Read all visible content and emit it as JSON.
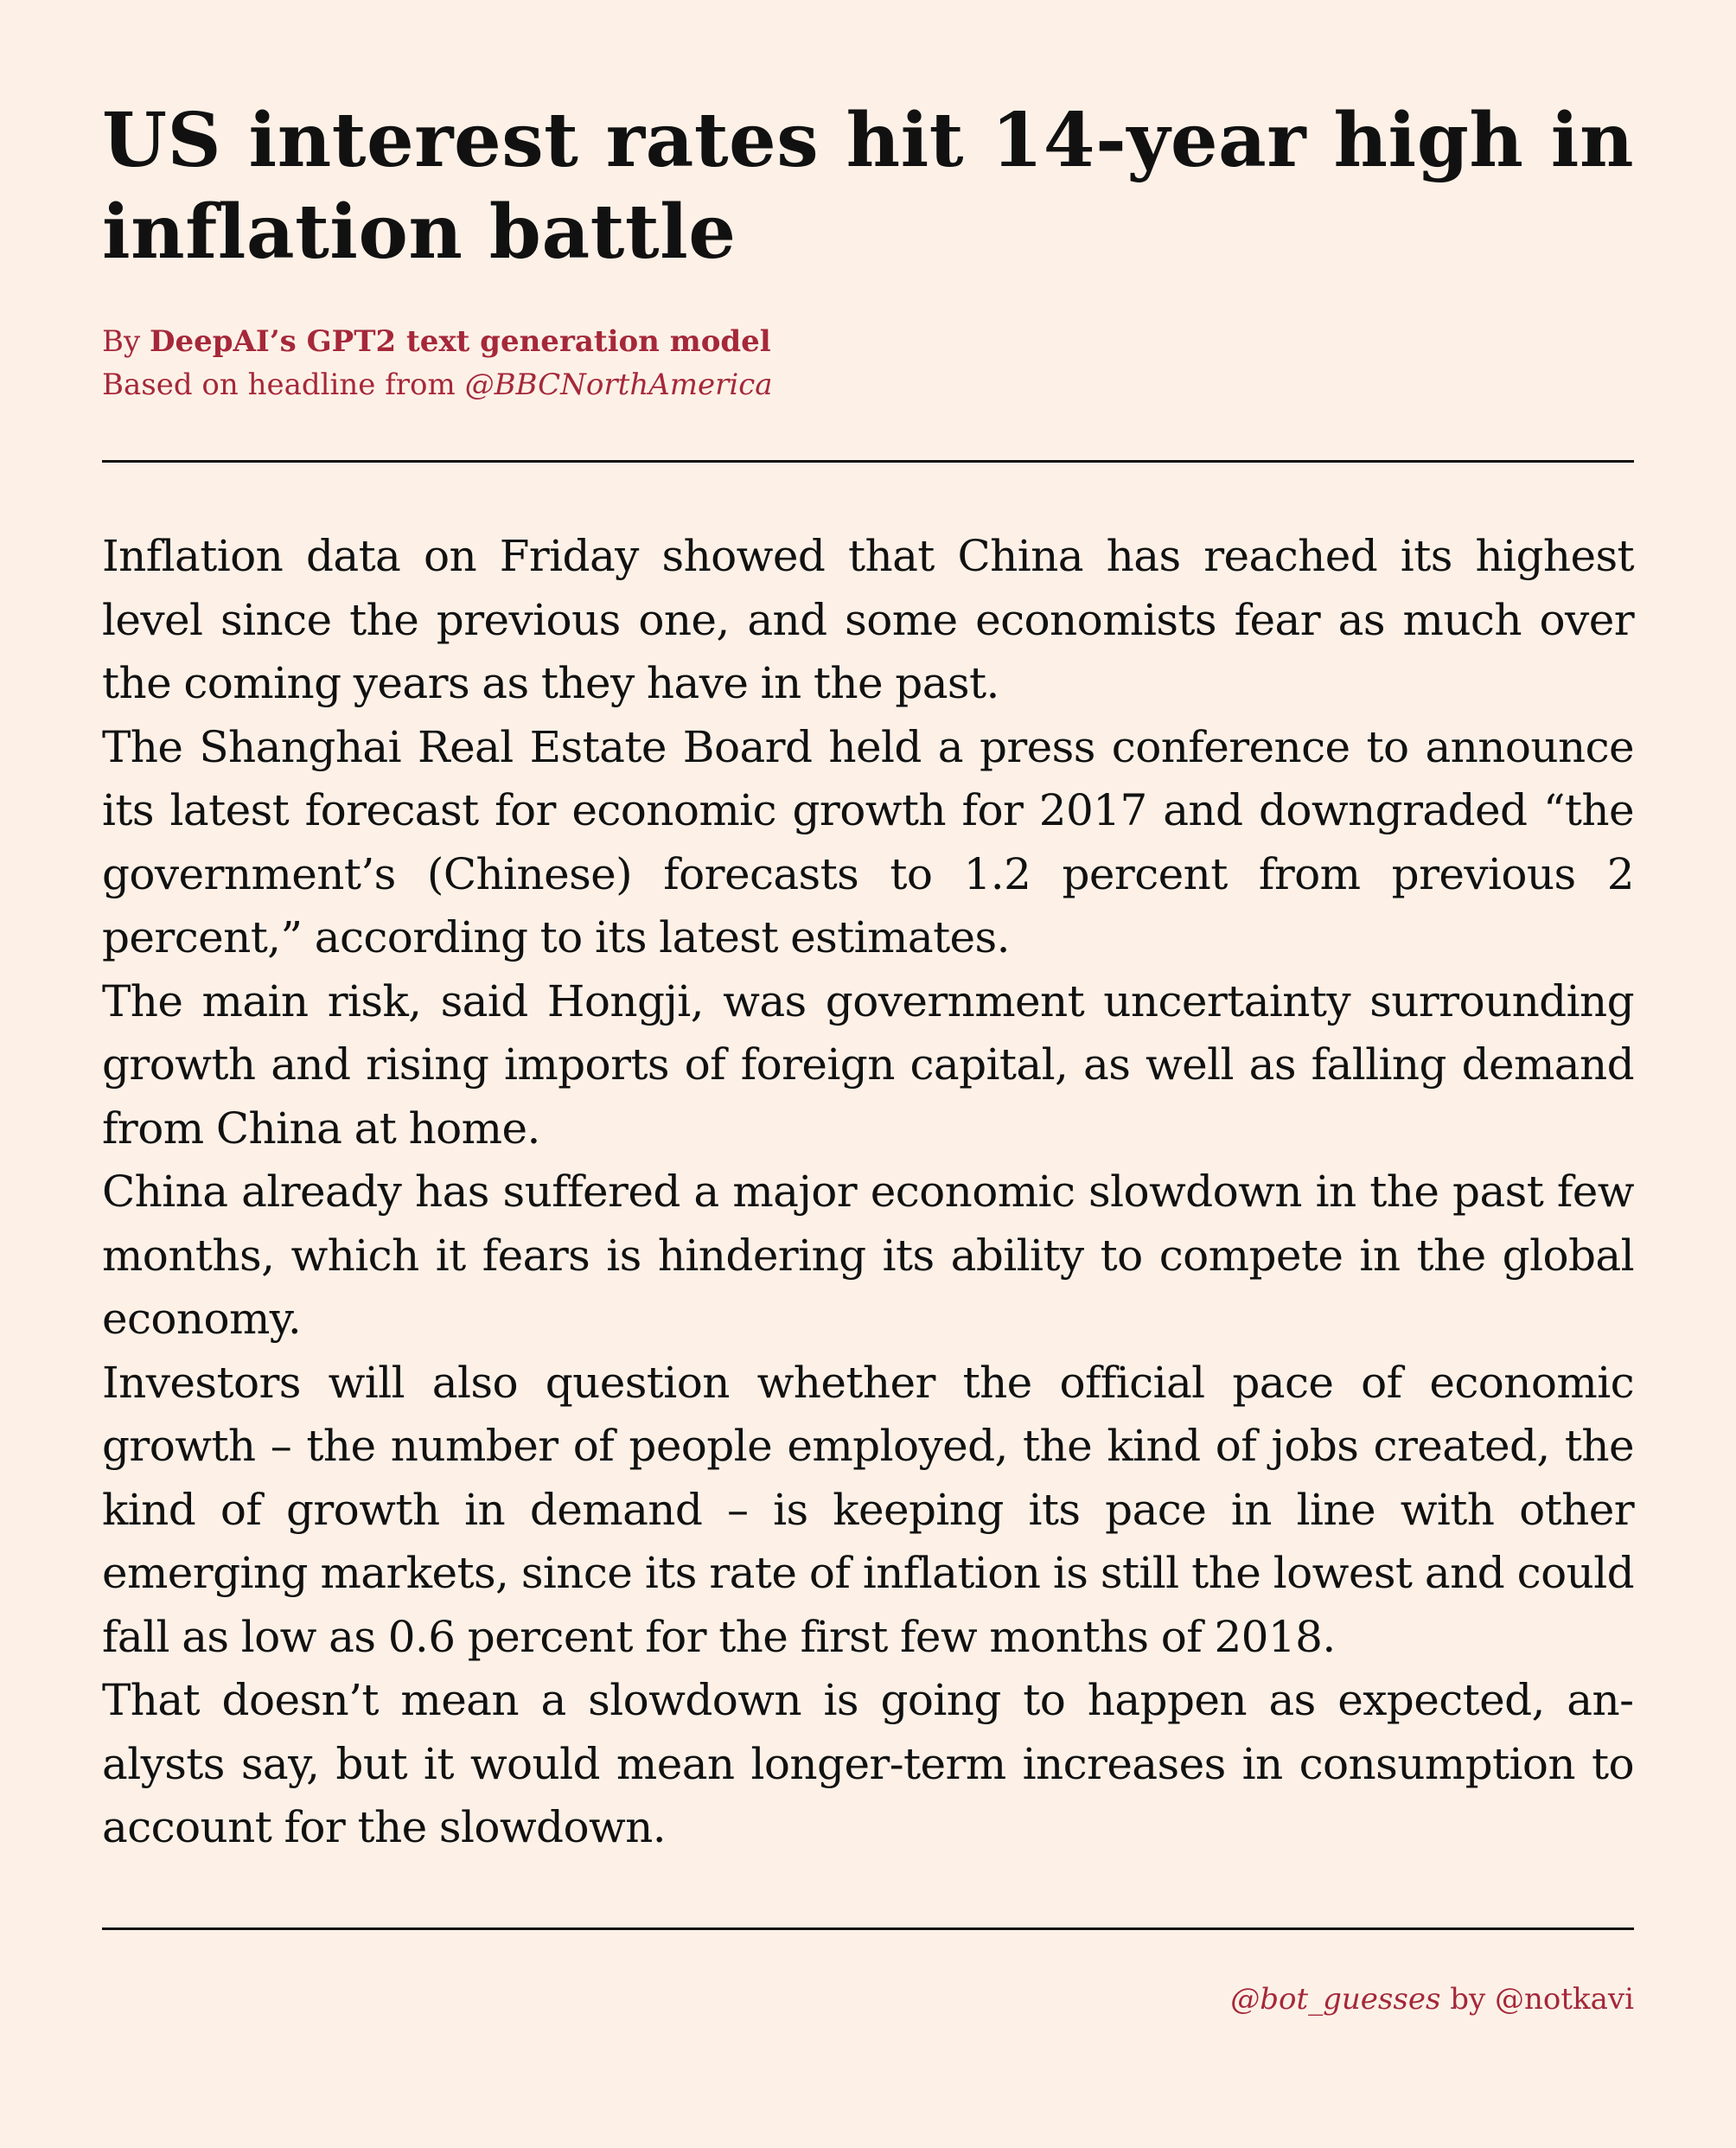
{
  "headline": "US interest rates hit 14-year high in inflation battle",
  "byline": {
    "prefix": "By ",
    "author": "DeepAI’s GPT2 text generation model",
    "based_prefix": "Based on headline from ",
    "source": "@BBCNorthAmerica"
  },
  "paragraphs": [
    "Inflation data on Friday showed that China has reached its highest level since the previous one, and some economists fear as much over the coming years as they have in the past.",
    "The Shanghai Real Estate Board held a press conference to announce its latest forecast for economic growth for 2017 and downgraded “the government’s (Chinese) forecasts to 1.2 percent from previous 2 percent,” according to its latest estimates.",
    "The main risk, said Hongji, was government uncertainty surround­ing growth and rising imports of foreign capital, as well as falling demand from China at home.",
    "China already has suffered a major economic slowdown in the past few months, which it fears is hindering its ability to compete in the global economy.",
    "Investors will also question whether the official pace of economic growth – the number of people employed, the kind of jobs created, the kind of growth in demand – is keeping its pace in line with other emerging markets, since its rate of inflation is still the lowest and could fall as low as 0.6 percent for the first few months of 2018.",
    "That doesn’t mean a slowdown is going to happen as expected, an­alysts say, but it would mean longer-term increases in consumption to account for the slowdown."
  ],
  "footer": {
    "handle": "@bot_guesses",
    "by": " by ",
    "author": "@notkavi"
  }
}
